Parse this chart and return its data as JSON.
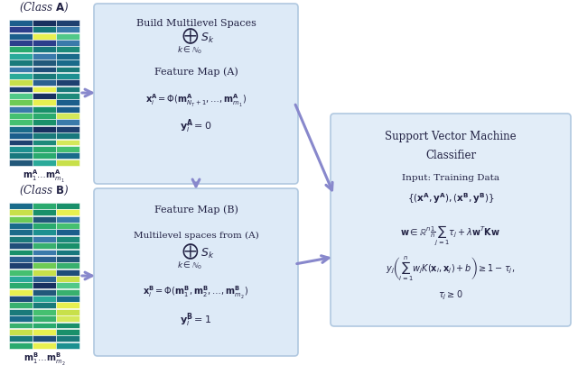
{
  "fig_width": 6.4,
  "fig_height": 4.05,
  "bg_color": "#ffffff",
  "arrow_color": "#8888cc",
  "class_A_label": "(Class $\\mathbf{A}$)",
  "class_B_label": "(Class $\\mathbf{B}$)",
  "box1_title": "Build Multilevel Spaces",
  "box1_sum": "$\\bigoplus_{k\\in\\mathbb{N}_0} S_k$",
  "box1_sub1": "Feature Map (A)",
  "box1_sub2": "$\\mathbf{x}_i^{\\mathbf{A}} = \\Phi(\\mathbf{m}^{\\mathbf{A}}_{N_T+1},\\ldots,\\mathbf{m}^{\\mathbf{A}}_{m_1})$",
  "box1_sub3": "$\\mathbf{y}_i^{\\mathbf{A}} = 0$",
  "box2_title": "Feature Map (B)",
  "box2_sub1": "Multilevel spaces from (A)",
  "box2_sum": "$\\bigoplus_{k\\in\\mathbb{N}_0} S_k$",
  "box2_sub2": "$\\mathbf{x}_i^{\\mathbf{B}} = \\Phi(\\mathbf{m}^{\\mathbf{B}}_1,\\mathbf{m}^{\\mathbf{B}}_2,\\ldots,\\mathbf{m}^{\\mathbf{B}}_{m_2})$",
  "box2_sub3": "$\\mathbf{y}_i^{\\mathbf{B}} = 1$",
  "svm_line1": "Support Vector Machine",
  "svm_line2": "Classifier",
  "svm_line3": "Input: Training Data",
  "svm_line4": "$\\{(\\mathbf{x}^{\\mathbf{A}},\\mathbf{y}^{\\mathbf{A}}),(\\mathbf{x}^{\\mathbf{B}},\\mathbf{y}^{\\mathbf{B}})\\}$",
  "svm_line5": "$\\mathbf{w} \\in \\mathbb{R}^n \\frac{1}{n}\\sum_{j=1} \\tau_j + \\lambda\\mathbf{w}^T\\mathbf{K}\\mathbf{w}$",
  "svm_line6": "$y_j\\left(\\sum_{i=1}^n w_j K(\\mathbf{x}_i,\\mathbf{x}_j)+b\\right) \\geq 1-\\tau_j,$",
  "svm_line7": "$\\tau_j \\geq 0$",
  "label_A_bottom": "$\\mathbf{m}_1^{\\mathbf{A}} \\ldots \\mathbf{m}^{\\mathbf{A}}_{m_1}$",
  "label_B_bottom": "$\\mathbf{m}_1^{\\mathbf{B}} \\ldots \\mathbf{m}^{\\mathbf{B}}_{m_2}$",
  "box_facecolor": "#ddeaf7",
  "box_edgecolor": "#b0c8e0",
  "svm_facecolor": "#e2edf8",
  "svm_edgecolor": "#b0c8e0"
}
